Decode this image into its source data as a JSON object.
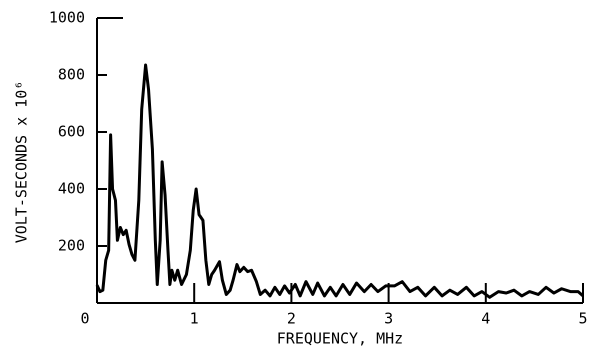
{
  "chart_data": {
    "type": "line",
    "xlabel": "FREQUENCY, MHz",
    "ylabel": "VOLT-SECONDS x 10⁶",
    "xlim": [
      0,
      5
    ],
    "ylim": [
      0,
      1000
    ],
    "xticks": [
      0,
      1,
      2,
      3,
      4,
      5
    ],
    "yticks": [
      200,
      400,
      600,
      800,
      1000
    ],
    "grid": false,
    "series": [
      {
        "color": "#000000",
        "x": [
          0,
          0.03,
          0.06,
          0.09,
          0.12,
          0.14,
          0.16,
          0.19,
          0.21,
          0.24,
          0.27,
          0.3,
          0.33,
          0.36,
          0.39,
          0.43,
          0.46,
          0.5,
          0.53,
          0.57,
          0.6,
          0.62,
          0.65,
          0.67,
          0.7,
          0.73,
          0.75,
          0.77,
          0.8,
          0.83,
          0.87,
          0.92,
          0.96,
          0.99,
          1.02,
          1.05,
          1.09,
          1.12,
          1.15,
          1.18,
          1.21,
          1.26,
          1.29,
          1.33,
          1.37,
          1.4,
          1.44,
          1.47,
          1.51,
          1.55,
          1.59,
          1.64,
          1.68,
          1.73,
          1.78,
          1.83,
          1.88,
          1.93,
          1.98,
          2.04,
          2.09,
          2.15,
          2.22,
          2.27,
          2.34,
          2.4,
          2.46,
          2.53,
          2.6,
          2.67,
          2.75,
          2.82,
          2.89,
          2.97,
          3.06,
          3.14,
          3.22,
          3.3,
          3.38,
          3.47,
          3.55,
          3.63,
          3.71,
          3.8,
          3.88,
          3.96,
          4.04,
          4.13,
          4.21,
          4.29,
          4.37,
          4.45,
          4.54,
          4.62,
          4.7,
          4.78,
          4.87,
          4.95,
          5.0
        ],
        "values": [
          63,
          40,
          45,
          150,
          185,
          590,
          400,
          360,
          220,
          265,
          240,
          255,
          205,
          170,
          150,
          360,
          680,
          835,
          750,
          540,
          220,
          65,
          220,
          495,
          380,
          185,
          65,
          115,
          80,
          115,
          65,
          100,
          185,
          325,
          400,
          310,
          290,
          150,
          65,
          100,
          115,
          145,
          80,
          30,
          45,
          80,
          135,
          110,
          125,
          110,
          115,
          75,
          30,
          45,
          25,
          55,
          30,
          60,
          35,
          65,
          25,
          75,
          30,
          70,
          25,
          55,
          25,
          65,
          30,
          70,
          40,
          65,
          40,
          60,
          60,
          75,
          40,
          55,
          25,
          55,
          25,
          45,
          30,
          55,
          25,
          40,
          20,
          40,
          35,
          45,
          25,
          40,
          30,
          55,
          35,
          50,
          40,
          40,
          25
        ]
      }
    ]
  }
}
